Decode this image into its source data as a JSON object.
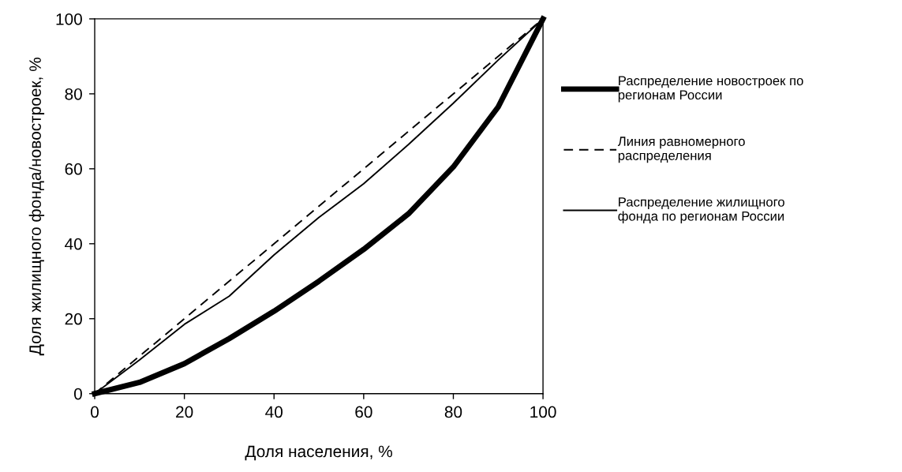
{
  "chart_data": {
    "type": "line",
    "xlabel": "Доля населения, %",
    "ylabel": "Доля жилищного фонда/новостроек, %",
    "xlim": [
      0,
      100
    ],
    "ylim": [
      0,
      100
    ],
    "xticks": [
      0,
      20,
      40,
      60,
      80,
      100
    ],
    "yticks": [
      0,
      20,
      40,
      60,
      80,
      100
    ],
    "grid": false,
    "legend": "right",
    "marker": "none",
    "series": [
      {
        "name": "Распределение новостроек по\nрегионам России",
        "color": "#000000",
        "line_style": "solid",
        "x": [
          0,
          10,
          20,
          30,
          40,
          50,
          60,
          70,
          80,
          90,
          100
        ],
        "values": [
          0,
          3,
          8,
          14.7,
          22,
          30,
          38.5,
          48,
          60.5,
          76.5,
          100
        ]
      },
      {
        "name": "Линия равномерного\nраспределения",
        "color": "#000000",
        "line_style": "dashed",
        "x": [
          0,
          100
        ],
        "values": [
          0,
          100
        ]
      },
      {
        "name": "Распределение жилищного\nфонда по регионам России",
        "color": "#000000",
        "line_style": "solid",
        "x": [
          0,
          10,
          20,
          30,
          40,
          50,
          60,
          70,
          80,
          90,
          100
        ],
        "values": [
          0,
          9,
          18.5,
          26,
          37,
          47,
          56,
          66.5,
          77.5,
          89,
          100
        ]
      }
    ]
  }
}
